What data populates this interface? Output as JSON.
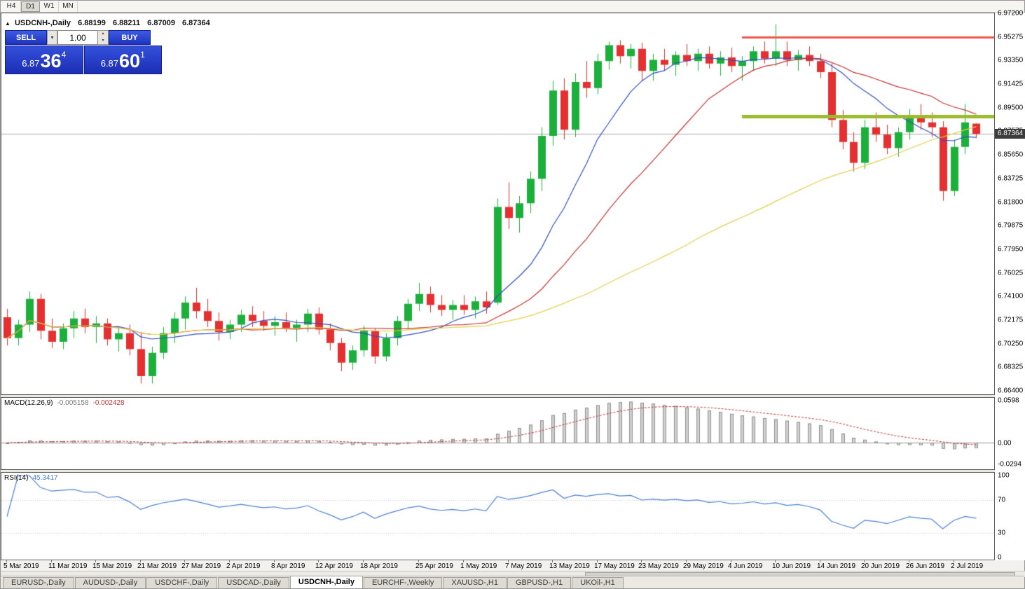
{
  "toolbar": {
    "timeframes": [
      {
        "label": "H4",
        "active": false
      },
      {
        "label": "D1",
        "active": true
      },
      {
        "label": "W1",
        "active": false
      },
      {
        "label": "MN",
        "active": false
      }
    ]
  },
  "header": {
    "symbol": "USDCNH-,Daily",
    "open": "6.88199",
    "high": "6.88211",
    "low": "6.87009",
    "close": "6.87364"
  },
  "trade_panel": {
    "sell_label": "SELL",
    "buy_label": "BUY",
    "volume": "1.00",
    "sell_price": {
      "base": "6.87",
      "pips": "36",
      "pt": "4"
    },
    "buy_price": {
      "base": "6.87",
      "pips": "60",
      "pt": "1"
    }
  },
  "price_axis": {
    "labels": [
      "6.97200",
      "6.95275",
      "6.93350",
      "6.91425",
      "6.89500",
      "6.87575",
      "6.85650",
      "6.83725",
      "6.81800",
      "6.79875",
      "6.77950",
      "6.76025",
      "6.74100",
      "6.72175",
      "6.70250",
      "6.68325",
      "6.66400"
    ],
    "current": "6.87364"
  },
  "time_axis": {
    "labels": [
      {
        "text": "5 Mar 2019",
        "i": 0
      },
      {
        "text": "11 Mar 2019",
        "i": 4
      },
      {
        "text": "15 Mar 2019",
        "i": 8
      },
      {
        "text": "21 Mar 2019",
        "i": 12
      },
      {
        "text": "27 Mar 2019",
        "i": 16
      },
      {
        "text": "2 Apr 2019",
        "i": 20
      },
      {
        "text": "8 Apr 2019",
        "i": 24
      },
      {
        "text": "12 Apr 2019",
        "i": 28
      },
      {
        "text": "18 Apr 2019",
        "i": 32
      },
      {
        "text": "25 Apr 2019",
        "i": 37
      },
      {
        "text": "1 May 2019",
        "i": 41
      },
      {
        "text": "7 May 2019",
        "i": 45
      },
      {
        "text": "13 May 2019",
        "i": 49
      },
      {
        "text": "17 May 2019",
        "i": 53
      },
      {
        "text": "23 May 2019",
        "i": 57
      },
      {
        "text": "29 May 2019",
        "i": 61
      },
      {
        "text": "4 Jun 2019",
        "i": 65
      },
      {
        "text": "10 Jun 2019",
        "i": 69
      },
      {
        "text": "14 Jun 2019",
        "i": 73
      },
      {
        "text": "20 Jun 2019",
        "i": 77
      },
      {
        "text": "26 Jun 2019",
        "i": 81
      },
      {
        "text": "2 Jul 2019",
        "i": 85
      }
    ]
  },
  "macd_panel": {
    "title": "MACD(12,26,9)",
    "main": "-0.005158",
    "signal": "-0.002428",
    "axis": [
      "0.0598",
      "0.00",
      "-0.0294"
    ]
  },
  "rsi_panel": {
    "title": "RSI(14)",
    "value": "45.3417",
    "axis": [
      "100",
      "70",
      "30",
      "0"
    ]
  },
  "tabs": [
    {
      "label": "EURUSD-,Daily",
      "active": false
    },
    {
      "label": "AUDUSD-,Daily",
      "active": false
    },
    {
      "label": "USDCHF-,Daily",
      "active": false
    },
    {
      "label": "USDCAD-,Daily",
      "active": false
    },
    {
      "label": "USDCNH-,Daily",
      "active": true
    },
    {
      "label": "EURCHF-,Weekly",
      "active": false
    },
    {
      "label": "XAUUSD-,H1",
      "active": false
    },
    {
      "label": "GBPUSD-,H1",
      "active": false
    },
    {
      "label": "UKOil-,H1",
      "active": false
    }
  ],
  "chart_data": {
    "type": "candlestick",
    "symbol": "USDCNH-",
    "timeframe": "Daily",
    "y_range": {
      "top": 6.972,
      "bottom": 6.664
    },
    "current_price": 6.87364,
    "colors": {
      "bull": "#1daf3c",
      "bear": "#e43030",
      "ma_fast": "#3050c0",
      "ma_mid": "#c83232",
      "ma_slow": "#e3cf4a",
      "macd_hist_fill": "#d0d0d0",
      "macd_hist_edge": "#8f8f8f",
      "macd_signal": "#c63434",
      "rsi_line": "#4a7fd4",
      "level_red": "#f4564e",
      "level_green": "#9cba2e",
      "price_line": "#a8a8a8",
      "badge_bg": "#3c3c3c"
    },
    "moving_averages": [
      {
        "type": "SMA",
        "period": 10,
        "color_key": "ma_fast"
      },
      {
        "type": "SMA",
        "period": 20,
        "color_key": "ma_mid"
      },
      {
        "type": "SMA",
        "period": 50,
        "color_key": "ma_slow"
      }
    ],
    "levels": [
      {
        "price": 6.95275,
        "color_key": "level_red",
        "width": 3,
        "from_index": 66
      },
      {
        "price": 6.888,
        "color_key": "level_green",
        "width": 5,
        "from_index": 66
      }
    ],
    "indicators": {
      "macd": {
        "fast": 12,
        "slow": 26,
        "signal": 9,
        "range": [
          -0.0294,
          0.0598
        ]
      },
      "rsi": {
        "period": 14,
        "levels": [
          30,
          70
        ],
        "range": [
          0,
          100
        ]
      }
    },
    "candles": [
      [
        "2019-03-05",
        6.724,
        6.731,
        6.701,
        6.707
      ],
      [
        "2019-03-06",
        6.707,
        6.722,
        6.701,
        6.718
      ],
      [
        "2019-03-07",
        6.718,
        6.745,
        6.712,
        6.739
      ],
      [
        "2019-03-08",
        6.739,
        6.743,
        6.706,
        6.713
      ],
      [
        "2019-03-11",
        6.713,
        6.723,
        6.699,
        6.704
      ],
      [
        "2019-03-12",
        6.704,
        6.719,
        6.698,
        6.715
      ],
      [
        "2019-03-13",
        6.715,
        6.729,
        6.707,
        6.723
      ],
      [
        "2019-03-14",
        6.723,
        6.731,
        6.711,
        6.716
      ],
      [
        "2019-03-15",
        6.716,
        6.725,
        6.703,
        6.719
      ],
      [
        "2019-03-18",
        6.719,
        6.723,
        6.701,
        6.706
      ],
      [
        "2019-03-19",
        6.706,
        6.716,
        6.696,
        6.711
      ],
      [
        "2019-03-20",
        6.711,
        6.718,
        6.693,
        6.698
      ],
      [
        "2019-03-21",
        6.698,
        6.712,
        6.67,
        6.676
      ],
      [
        "2019-03-22",
        6.676,
        6.7,
        6.67,
        6.695
      ],
      [
        "2019-03-25",
        6.695,
        6.716,
        6.69,
        6.711
      ],
      [
        "2019-03-26",
        6.711,
        6.728,
        6.703,
        6.723
      ],
      [
        "2019-03-27",
        6.723,
        6.741,
        6.714,
        6.736
      ],
      [
        "2019-03-28",
        6.736,
        6.748,
        6.723,
        6.729
      ],
      [
        "2019-03-29",
        6.729,
        6.739,
        6.716,
        6.721
      ],
      [
        "2019-04-01",
        6.721,
        6.728,
        6.705,
        6.712
      ],
      [
        "2019-04-02",
        6.712,
        6.722,
        6.706,
        6.718
      ],
      [
        "2019-04-03",
        6.718,
        6.73,
        6.712,
        6.726
      ],
      [
        "2019-04-04",
        6.726,
        6.733,
        6.716,
        6.721
      ],
      [
        "2019-04-05",
        6.721,
        6.729,
        6.713,
        6.717
      ],
      [
        "2019-04-08",
        6.717,
        6.725,
        6.709,
        6.72
      ],
      [
        "2019-04-09",
        6.72,
        6.728,
        6.712,
        6.715
      ],
      [
        "2019-04-10",
        6.715,
        6.722,
        6.704,
        6.718
      ],
      [
        "2019-04-11",
        6.718,
        6.731,
        6.712,
        6.727
      ],
      [
        "2019-04-12",
        6.727,
        6.732,
        6.71,
        6.714
      ],
      [
        "2019-04-15",
        6.714,
        6.719,
        6.697,
        6.703
      ],
      [
        "2019-04-16",
        6.703,
        6.707,
        6.68,
        6.687
      ],
      [
        "2019-04-17",
        6.687,
        6.701,
        6.681,
        6.697
      ],
      [
        "2019-04-18",
        6.697,
        6.717,
        6.692,
        6.713
      ],
      [
        "2019-04-19",
        6.713,
        6.715,
        6.686,
        6.692
      ],
      [
        "2019-04-22",
        6.692,
        6.711,
        6.688,
        6.707
      ],
      [
        "2019-04-23",
        6.707,
        6.725,
        6.701,
        6.721
      ],
      [
        "2019-04-24",
        6.721,
        6.739,
        6.715,
        6.735
      ],
      [
        "2019-04-25",
        6.735,
        6.752,
        6.729,
        6.743
      ],
      [
        "2019-04-26",
        6.743,
        6.749,
        6.728,
        6.734
      ],
      [
        "2019-04-29",
        6.734,
        6.742,
        6.725,
        6.73
      ],
      [
        "2019-04-30",
        6.73,
        6.738,
        6.722,
        6.734
      ],
      [
        "2019-05-01",
        6.734,
        6.742,
        6.726,
        6.73
      ],
      [
        "2019-05-02",
        6.73,
        6.741,
        6.723,
        6.737
      ],
      [
        "2019-05-03",
        6.737,
        6.745,
        6.727,
        6.732
      ],
      [
        "2019-05-06",
        6.736,
        6.821,
        6.734,
        6.814
      ],
      [
        "2019-05-07",
        6.814,
        6.834,
        6.796,
        6.805
      ],
      [
        "2019-05-08",
        6.805,
        6.823,
        6.793,
        6.817
      ],
      [
        "2019-05-09",
        6.817,
        6.843,
        6.809,
        6.837
      ],
      [
        "2019-05-10",
        6.837,
        6.879,
        6.827,
        6.872
      ],
      [
        "2019-05-13",
        6.872,
        6.917,
        6.864,
        6.909
      ],
      [
        "2019-05-14",
        6.909,
        6.919,
        6.869,
        6.877
      ],
      [
        "2019-05-15",
        6.877,
        6.923,
        6.871,
        6.916
      ],
      [
        "2019-05-16",
        6.916,
        6.933,
        6.903,
        6.911
      ],
      [
        "2019-05-17",
        6.911,
        6.939,
        6.906,
        6.933
      ],
      [
        "2019-05-20",
        6.933,
        6.949,
        6.926,
        6.946
      ],
      [
        "2019-05-21",
        6.946,
        6.95,
        6.931,
        6.937
      ],
      [
        "2019-05-22",
        6.937,
        6.947,
        6.927,
        6.943
      ],
      [
        "2019-05-23",
        6.943,
        6.948,
        6.917,
        6.925
      ],
      [
        "2019-05-24",
        6.925,
        6.939,
        6.917,
        6.934
      ],
      [
        "2019-05-27",
        6.934,
        6.943,
        6.925,
        6.93
      ],
      [
        "2019-05-28",
        6.93,
        6.941,
        6.921,
        6.938
      ],
      [
        "2019-05-29",
        6.938,
        6.947,
        6.929,
        6.933
      ],
      [
        "2019-05-30",
        6.933,
        6.943,
        6.925,
        6.939
      ],
      [
        "2019-05-31",
        6.939,
        6.945,
        6.927,
        6.931
      ],
      [
        "2019-06-03",
        6.931,
        6.941,
        6.921,
        6.936
      ],
      [
        "2019-06-04",
        6.936,
        6.944,
        6.924,
        6.929
      ],
      [
        "2019-06-05",
        6.929,
        6.937,
        6.917,
        6.933
      ],
      [
        "2019-06-06",
        6.933,
        6.945,
        6.925,
        6.941
      ],
      [
        "2019-06-07",
        6.941,
        6.949,
        6.931,
        6.935
      ],
      [
        "2019-06-10",
        6.935,
        6.963,
        6.929,
        6.941
      ],
      [
        "2019-06-11",
        6.941,
        6.949,
        6.929,
        6.934
      ],
      [
        "2019-06-12",
        6.934,
        6.942,
        6.925,
        6.938
      ],
      [
        "2019-06-13",
        6.938,
        6.945,
        6.929,
        6.933
      ],
      [
        "2019-06-14",
        6.933,
        6.939,
        6.919,
        6.924
      ],
      [
        "2019-06-17",
        6.924,
        6.931,
        6.879,
        6.885
      ],
      [
        "2019-06-18",
        6.885,
        6.893,
        6.861,
        6.867
      ],
      [
        "2019-06-19",
        6.867,
        6.875,
        6.843,
        6.85
      ],
      [
        "2019-06-20",
        6.85,
        6.885,
        6.845,
        6.879
      ],
      [
        "2019-06-21",
        6.879,
        6.891,
        6.867,
        6.873
      ],
      [
        "2019-06-24",
        6.873,
        6.881,
        6.857,
        6.862
      ],
      [
        "2019-06-25",
        6.862,
        6.879,
        6.855,
        6.875
      ],
      [
        "2019-06-26",
        6.875,
        6.894,
        6.869,
        6.889
      ],
      [
        "2019-06-27",
        6.889,
        6.898,
        6.877,
        6.883
      ],
      [
        "2019-06-28",
        6.883,
        6.891,
        6.871,
        6.879
      ],
      [
        "2019-07-01",
        6.879,
        6.884,
        6.819,
        6.827
      ],
      [
        "2019-07-02",
        6.827,
        6.869,
        6.823,
        6.863
      ],
      [
        "2019-07-03",
        6.863,
        6.898,
        6.857,
        6.883
      ],
      [
        "2019-07-04",
        6.88199,
        6.88211,
        6.87009,
        6.87364
      ]
    ]
  }
}
